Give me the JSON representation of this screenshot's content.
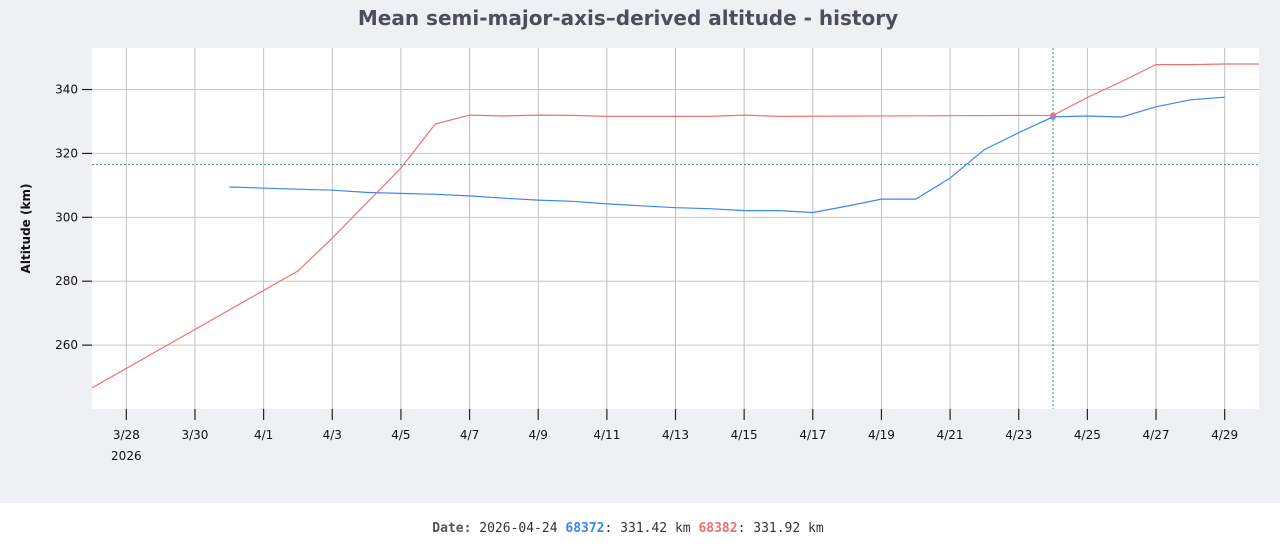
{
  "chart_data": {
    "type": "line",
    "title": "Mean semi-major-axis–derived altitude - history",
    "ylabel": "Altitude (km)",
    "xlabel": "",
    "xlim": [
      "2026-03-27",
      "2026-04-30"
    ],
    "ylim": [
      240,
      353
    ],
    "yticks": [
      260,
      280,
      300,
      320,
      340
    ],
    "xticks": [
      {
        "date": "2026-03-28",
        "label": "3/28",
        "sublabel": "2026"
      },
      {
        "date": "2026-03-30",
        "label": "3/30"
      },
      {
        "date": "2026-04-01",
        "label": "4/1"
      },
      {
        "date": "2026-04-03",
        "label": "4/3"
      },
      {
        "date": "2026-04-05",
        "label": "4/5"
      },
      {
        "date": "2026-04-07",
        "label": "4/7"
      },
      {
        "date": "2026-04-09",
        "label": "4/9"
      },
      {
        "date": "2026-04-11",
        "label": "4/11"
      },
      {
        "date": "2026-04-13",
        "label": "4/13"
      },
      {
        "date": "2026-04-15",
        "label": "4/15"
      },
      {
        "date": "2026-04-17",
        "label": "4/17"
      },
      {
        "date": "2026-04-19",
        "label": "4/19"
      },
      {
        "date": "2026-04-21",
        "label": "4/21"
      },
      {
        "date": "2026-04-23",
        "label": "4/23"
      },
      {
        "date": "2026-04-25",
        "label": "4/25"
      },
      {
        "date": "2026-04-27",
        "label": "4/27"
      },
      {
        "date": "2026-04-29",
        "label": "4/29"
      }
    ],
    "grid": true,
    "series": [
      {
        "name": "68372",
        "color": "#3d86f2",
        "points": [
          [
            "2026-03-31",
            309.5
          ],
          [
            "2026-04-02",
            308.8
          ],
          [
            "2026-04-03",
            308.5
          ],
          [
            "2026-04-04",
            307.8
          ],
          [
            "2026-04-05",
            307.5
          ],
          [
            "2026-04-06",
            307.2
          ],
          [
            "2026-04-07",
            306.7
          ],
          [
            "2026-04-08",
            306.0
          ],
          [
            "2026-04-09",
            305.4
          ],
          [
            "2026-04-10",
            305.0
          ],
          [
            "2026-04-11",
            304.2
          ],
          [
            "2026-04-12",
            303.6
          ],
          [
            "2026-04-13",
            303.0
          ],
          [
            "2026-04-14",
            302.7
          ],
          [
            "2026-04-15",
            302.1
          ],
          [
            "2026-04-16",
            302.1
          ],
          [
            "2026-04-17",
            301.5
          ],
          [
            "2026-04-18",
            303.5
          ],
          [
            "2026-04-19",
            305.7
          ],
          [
            "2026-04-20",
            305.7
          ],
          [
            "2026-04-21",
            312.3
          ],
          [
            "2026-04-22",
            321.2
          ],
          [
            "2026-04-23",
            326.5
          ],
          [
            "2026-04-24",
            331.42
          ],
          [
            "2026-04-25",
            331.7
          ],
          [
            "2026-04-26",
            331.4
          ],
          [
            "2026-04-27",
            334.6
          ],
          [
            "2026-04-28",
            336.8
          ],
          [
            "2026-04-29",
            337.6
          ]
        ]
      },
      {
        "name": "68382",
        "color": "#f07070",
        "points": [
          [
            "2026-03-27",
            246.6
          ],
          [
            "2026-04-02",
            283.2
          ],
          [
            "2026-04-03",
            293.5
          ],
          [
            "2026-04-05",
            315.4
          ],
          [
            "2026-04-06",
            329.2
          ],
          [
            "2026-04-07",
            332.0
          ],
          [
            "2026-04-08",
            331.7
          ],
          [
            "2026-04-09",
            332.0
          ],
          [
            "2026-04-10",
            331.9
          ],
          [
            "2026-04-11",
            331.6
          ],
          [
            "2026-04-14",
            331.6
          ],
          [
            "2026-04-15",
            332.0
          ],
          [
            "2026-04-16",
            331.6
          ],
          [
            "2026-04-24",
            331.92
          ],
          [
            "2026-04-25",
            337.5
          ],
          [
            "2026-04-26",
            342.5
          ],
          [
            "2026-04-27",
            347.8
          ],
          [
            "2026-04-28",
            347.8
          ],
          [
            "2026-04-29",
            348.0
          ],
          [
            "2026-04-30",
            348.0
          ]
        ]
      }
    ],
    "crosshair": {
      "date": "2026-04-24",
      "value": 316.5
    }
  },
  "readout": {
    "date_label": "Date:",
    "date_value": "2026-04-24",
    "s1_name": "68372",
    "s1_value": "331.42 km",
    "s2_name": "68382",
    "s2_value": "331.92 km"
  }
}
